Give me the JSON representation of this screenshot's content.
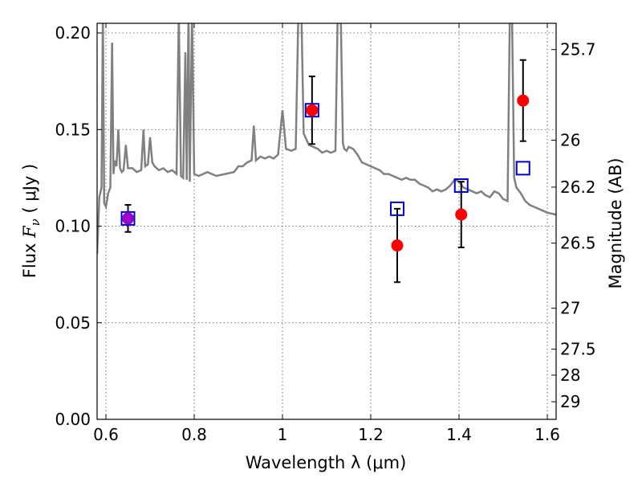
{
  "chart_data": {
    "type": "scatter",
    "xlabel": "Wavelength  λ (μm)",
    "ylabel_left": {
      "prefix": "Flux  ",
      "symbol": "F",
      "subscript": "ν",
      "suffix": "  ( μJy )"
    },
    "ylabel_right": "Magnitude (AB)",
    "xlim": [
      0.58,
      1.62
    ],
    "ylim": [
      0.0,
      0.205
    ],
    "x_ticks": [
      0.6,
      0.8,
      1.0,
      1.2,
      1.4,
      1.6
    ],
    "x_tick_labels": [
      "0.6",
      "0.8",
      "1",
      "1.2",
      "1.4",
      "1.6"
    ],
    "y_ticks": [
      0.0,
      0.05,
      0.1,
      0.15,
      0.2
    ],
    "y_tick_labels": [
      "0.00",
      "0.05",
      "0.10",
      "0.15",
      "0.20"
    ],
    "right_ticks": [
      {
        "label": "25.7",
        "flux": 0.1914
      },
      {
        "label": "26",
        "flux": 0.1445
      },
      {
        "label": "26.2",
        "flux": 0.1202
      },
      {
        "label": "26.5",
        "flux": 0.0912
      },
      {
        "label": "27",
        "flux": 0.0575
      },
      {
        "label": "27.5",
        "flux": 0.0363
      },
      {
        "label": "28",
        "flux": 0.0229
      },
      {
        "label": "29",
        "flux": 0.0091
      }
    ],
    "grid": true,
    "series": [
      {
        "role": "observed",
        "marker": "filled-circle",
        "points": [
          {
            "x": 0.65,
            "y": 0.104,
            "err": 0.007,
            "marker_color": "#9900cc"
          },
          {
            "x": 1.067,
            "y": 0.16,
            "err": 0.0175
          },
          {
            "x": 1.26,
            "y": 0.09,
            "err": 0.019
          },
          {
            "x": 1.405,
            "y": 0.106,
            "err": 0.017
          },
          {
            "x": 1.545,
            "y": 0.165,
            "err": 0.021
          }
        ]
      },
      {
        "role": "model-photometry",
        "marker": "open-square",
        "points": [
          {
            "x": 0.65,
            "y": 0.104
          },
          {
            "x": 1.067,
            "y": 0.16
          },
          {
            "x": 1.26,
            "y": 0.109
          },
          {
            "x": 1.405,
            "y": 0.121
          },
          {
            "x": 1.545,
            "y": 0.13
          }
        ]
      },
      {
        "role": "template-spectrum",
        "line": true,
        "points": [
          [
            0.58,
            0.0855
          ],
          [
            0.585,
            0.115
          ],
          [
            0.59,
            0.12
          ],
          [
            0.593,
            0.21
          ],
          [
            0.596,
            0.112
          ],
          [
            0.6,
            0.11
          ],
          [
            0.605,
            0.117
          ],
          [
            0.61,
            0.12
          ],
          [
            0.614,
            0.195
          ],
          [
            0.617,
            0.127
          ],
          [
            0.62,
            0.134
          ],
          [
            0.624,
            0.131
          ],
          [
            0.628,
            0.15
          ],
          [
            0.632,
            0.13
          ],
          [
            0.636,
            0.128
          ],
          [
            0.64,
            0.129
          ],
          [
            0.645,
            0.142
          ],
          [
            0.65,
            0.13
          ],
          [
            0.66,
            0.13
          ],
          [
            0.67,
            0.128
          ],
          [
            0.68,
            0.129
          ],
          [
            0.685,
            0.15
          ],
          [
            0.689,
            0.131
          ],
          [
            0.695,
            0.132
          ],
          [
            0.7,
            0.146
          ],
          [
            0.705,
            0.133
          ],
          [
            0.71,
            0.131
          ],
          [
            0.72,
            0.129
          ],
          [
            0.73,
            0.13
          ],
          [
            0.74,
            0.128
          ],
          [
            0.75,
            0.129
          ],
          [
            0.76,
            0.127
          ],
          [
            0.765,
            0.21
          ],
          [
            0.77,
            0.126
          ],
          [
            0.775,
            0.125
          ],
          [
            0.78,
            0.19
          ],
          [
            0.783,
            0.124
          ],
          [
            0.787,
            0.21
          ],
          [
            0.79,
            0.123
          ],
          [
            0.795,
            0.21
          ],
          [
            0.8,
            0.127
          ],
          [
            0.81,
            0.126
          ],
          [
            0.82,
            0.127
          ],
          [
            0.83,
            0.128
          ],
          [
            0.85,
            0.126
          ],
          [
            0.87,
            0.127
          ],
          [
            0.89,
            0.128
          ],
          [
            0.9,
            0.131
          ],
          [
            0.91,
            0.131
          ],
          [
            0.92,
            0.133
          ],
          [
            0.93,
            0.134
          ],
          [
            0.935,
            0.152
          ],
          [
            0.94,
            0.134
          ],
          [
            0.95,
            0.136
          ],
          [
            0.96,
            0.135
          ],
          [
            0.97,
            0.136
          ],
          [
            0.98,
            0.135
          ],
          [
            0.99,
            0.137
          ],
          [
            1.0,
            0.16
          ],
          [
            1.008,
            0.14
          ],
          [
            1.02,
            0.139
          ],
          [
            1.03,
            0.14
          ],
          [
            1.036,
            0.21
          ],
          [
            1.043,
            0.21
          ],
          [
            1.048,
            0.148
          ],
          [
            1.06,
            0.142
          ],
          [
            1.07,
            0.141
          ],
          [
            1.08,
            0.14
          ],
          [
            1.09,
            0.138
          ],
          [
            1.1,
            0.139
          ],
          [
            1.11,
            0.138
          ],
          [
            1.12,
            0.139
          ],
          [
            1.125,
            0.21
          ],
          [
            1.132,
            0.21
          ],
          [
            1.137,
            0.143
          ],
          [
            1.14,
            0.14
          ],
          [
            1.145,
            0.139
          ],
          [
            1.15,
            0.141
          ],
          [
            1.16,
            0.14
          ],
          [
            1.17,
            0.137
          ],
          [
            1.18,
            0.133
          ],
          [
            1.19,
            0.132
          ],
          [
            1.2,
            0.131
          ],
          [
            1.21,
            0.13
          ],
          [
            1.22,
            0.129
          ],
          [
            1.23,
            0.127
          ],
          [
            1.24,
            0.127
          ],
          [
            1.25,
            0.126
          ],
          [
            1.26,
            0.125
          ],
          [
            1.27,
            0.124
          ],
          [
            1.28,
            0.125
          ],
          [
            1.29,
            0.124
          ],
          [
            1.3,
            0.124
          ],
          [
            1.31,
            0.122
          ],
          [
            1.32,
            0.121
          ],
          [
            1.33,
            0.12
          ],
          [
            1.34,
            0.118
          ],
          [
            1.35,
            0.119
          ],
          [
            1.36,
            0.118
          ],
          [
            1.37,
            0.119
          ],
          [
            1.38,
            0.121
          ],
          [
            1.39,
            0.124
          ],
          [
            1.4,
            0.123
          ],
          [
            1.41,
            0.12
          ],
          [
            1.42,
            0.119
          ],
          [
            1.43,
            0.118
          ],
          [
            1.44,
            0.117
          ],
          [
            1.45,
            0.118
          ],
          [
            1.46,
            0.116
          ],
          [
            1.47,
            0.115
          ],
          [
            1.48,
            0.118
          ],
          [
            1.49,
            0.117
          ],
          [
            1.5,
            0.114
          ],
          [
            1.51,
            0.113
          ],
          [
            1.515,
            0.21
          ],
          [
            1.52,
            0.21
          ],
          [
            1.525,
            0.125
          ],
          [
            1.53,
            0.12
          ],
          [
            1.54,
            0.117
          ],
          [
            1.55,
            0.113
          ],
          [
            1.56,
            0.111
          ],
          [
            1.57,
            0.11
          ],
          [
            1.58,
            0.109
          ],
          [
            1.59,
            0.108
          ],
          [
            1.6,
            0.107
          ],
          [
            1.62,
            0.106
          ]
        ]
      }
    ],
    "colors": {
      "observed": "#ff0000",
      "model": "#0000cc",
      "spectrum": "#808080",
      "errorbar": "#000000"
    }
  }
}
